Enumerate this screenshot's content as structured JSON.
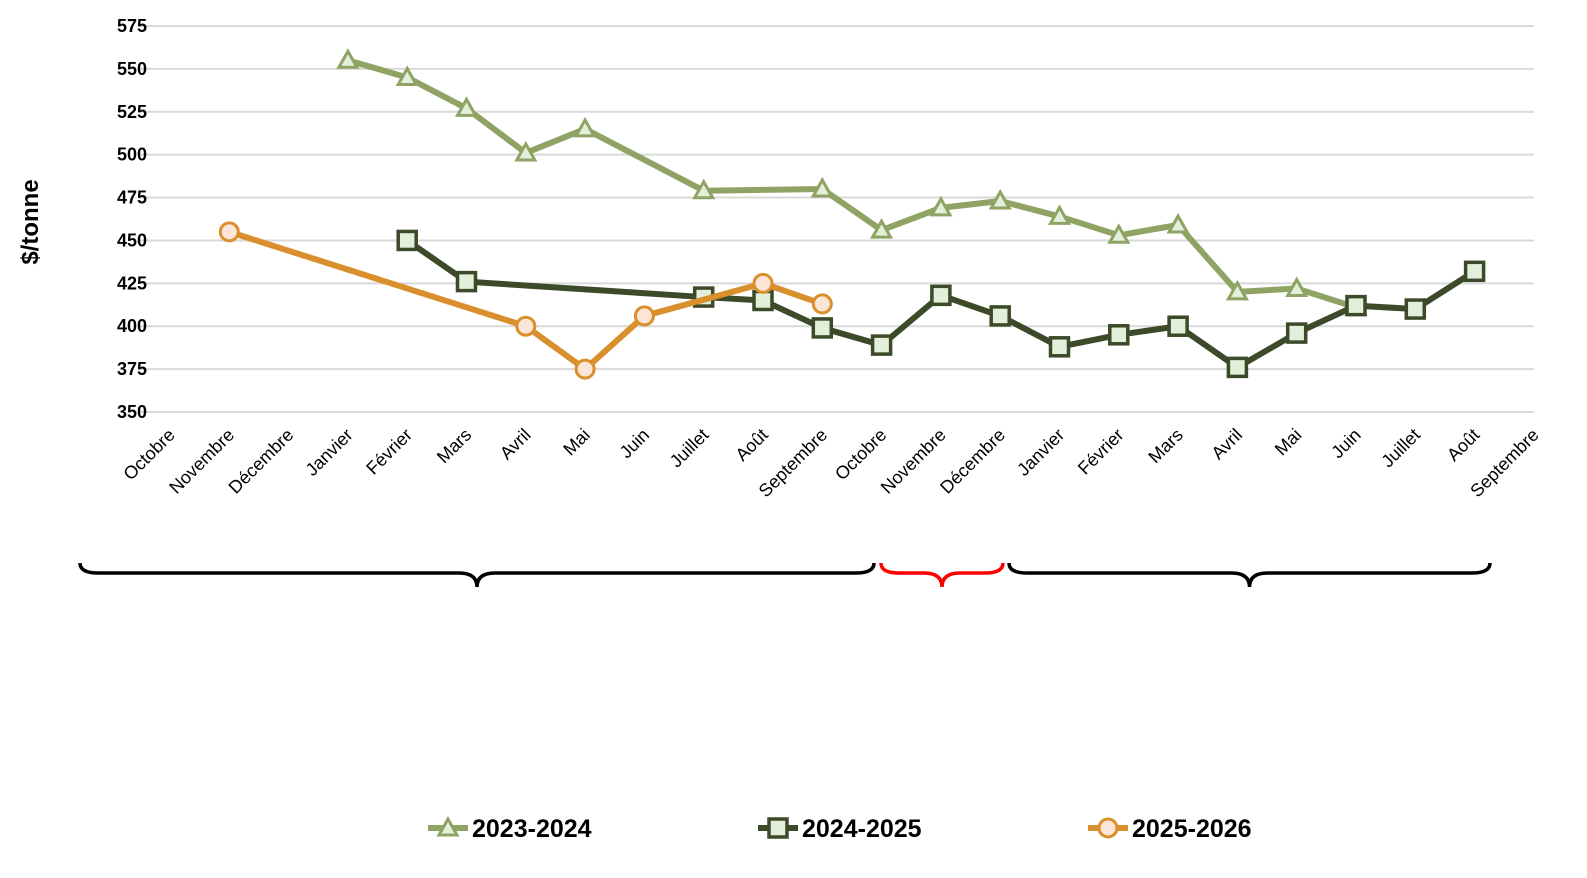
{
  "chart_data": {
    "type": "line",
    "title": "",
    "xlabel": "",
    "ylabel": "$/tonne",
    "ylim": [
      350,
      575
    ],
    "yticks": [
      350,
      375,
      400,
      425,
      450,
      475,
      500,
      525,
      550,
      575
    ],
    "grid": true,
    "legend_position": "bottom",
    "categories": [
      "Octobre",
      "Novembre",
      "Décembre",
      "Janvier",
      "Février",
      "Mars",
      "Avril",
      "Mai",
      "Juin",
      "Juillet",
      "Août",
      "Septembre",
      "Octobre",
      "Novembre",
      "Décembre",
      "Janvier",
      "Février",
      "Mars",
      "Avril",
      "Mai",
      "Juin",
      "Juillet",
      "Août",
      "Septembre"
    ],
    "series": [
      {
        "name": "2023-2024",
        "color": "#8fa464",
        "marker": "triangle",
        "values": [
          null,
          null,
          null,
          555,
          545,
          527,
          501,
          515,
          null,
          479,
          null,
          480,
          456,
          469,
          473,
          464,
          453,
          459,
          420,
          422,
          411,
          null,
          null,
          null
        ]
      },
      {
        "name": "2024-2025",
        "color": "#3c4a2a",
        "marker": "square",
        "values": [
          null,
          null,
          null,
          null,
          450,
          426,
          null,
          null,
          null,
          417,
          415,
          399,
          389,
          418,
          406,
          388,
          395,
          400,
          376,
          396,
          412,
          410,
          432,
          null
        ]
      },
      {
        "name": "2025-2026",
        "color": "#d98f2b",
        "marker": "circle",
        "values": [
          null,
          455,
          null,
          null,
          null,
          null,
          400,
          375,
          406,
          null,
          425,
          413,
          null,
          null,
          null,
          null,
          null,
          null,
          null,
          null,
          null,
          null,
          null,
          null
        ]
      }
    ],
    "braces": [
      {
        "color": "#000000"
      },
      {
        "color": "#ff0000"
      },
      {
        "color": "#000000"
      }
    ]
  }
}
